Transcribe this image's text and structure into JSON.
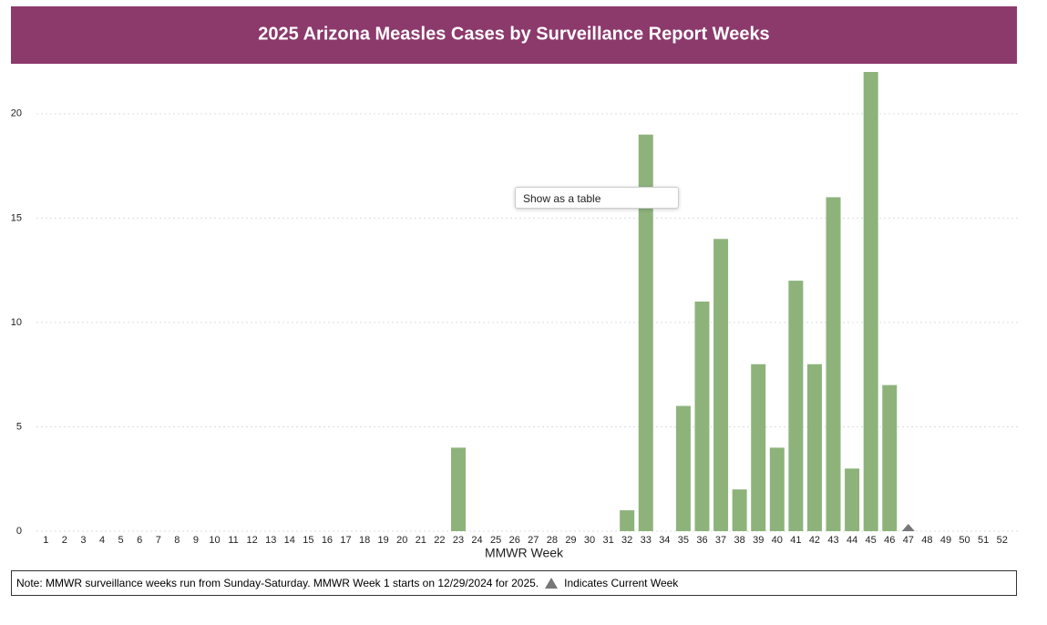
{
  "chart_data": {
    "type": "bar",
    "title": "2025 Arizona Measles Cases by Surveillance Report Weeks",
    "x_label": "MMWR Week",
    "categories": [
      "1",
      "2",
      "3",
      "4",
      "5",
      "6",
      "7",
      "8",
      "9",
      "10",
      "11",
      "12",
      "13",
      "14",
      "15",
      "16",
      "17",
      "18",
      "19",
      "20",
      "21",
      "22",
      "23",
      "24",
      "25",
      "26",
      "27",
      "28",
      "29",
      "30",
      "31",
      "32",
      "33",
      "34",
      "35",
      "36",
      "37",
      "38",
      "39",
      "40",
      "41",
      "42",
      "43",
      "44",
      "45",
      "46",
      "47",
      "48",
      "49",
      "50",
      "51",
      "52"
    ],
    "values": [
      0,
      0,
      0,
      0,
      0,
      0,
      0,
      0,
      0,
      0,
      0,
      0,
      0,
      0,
      0,
      0,
      0,
      0,
      0,
      0,
      0,
      0,
      4,
      0,
      0,
      0,
      0,
      0,
      0,
      0,
      0,
      1,
      19,
      0,
      6,
      11,
      14,
      2,
      8,
      4,
      12,
      8,
      16,
      3,
      22,
      7,
      0,
      0,
      0,
      0,
      0,
      0
    ],
    "color": "#8db37b",
    "ylim": [
      0,
      22
    ],
    "yticks": [
      0,
      5,
      10,
      15,
      20
    ],
    "grid": true,
    "current_week": 47
  },
  "menu": {
    "item": "Show as a table"
  },
  "note": {
    "text": "Note: MMWR surveillance weeks run from Sunday-Saturday. MMWR Week 1 starts on 12/29/2024 for 2025.",
    "legend": "Indicates Current Week"
  }
}
